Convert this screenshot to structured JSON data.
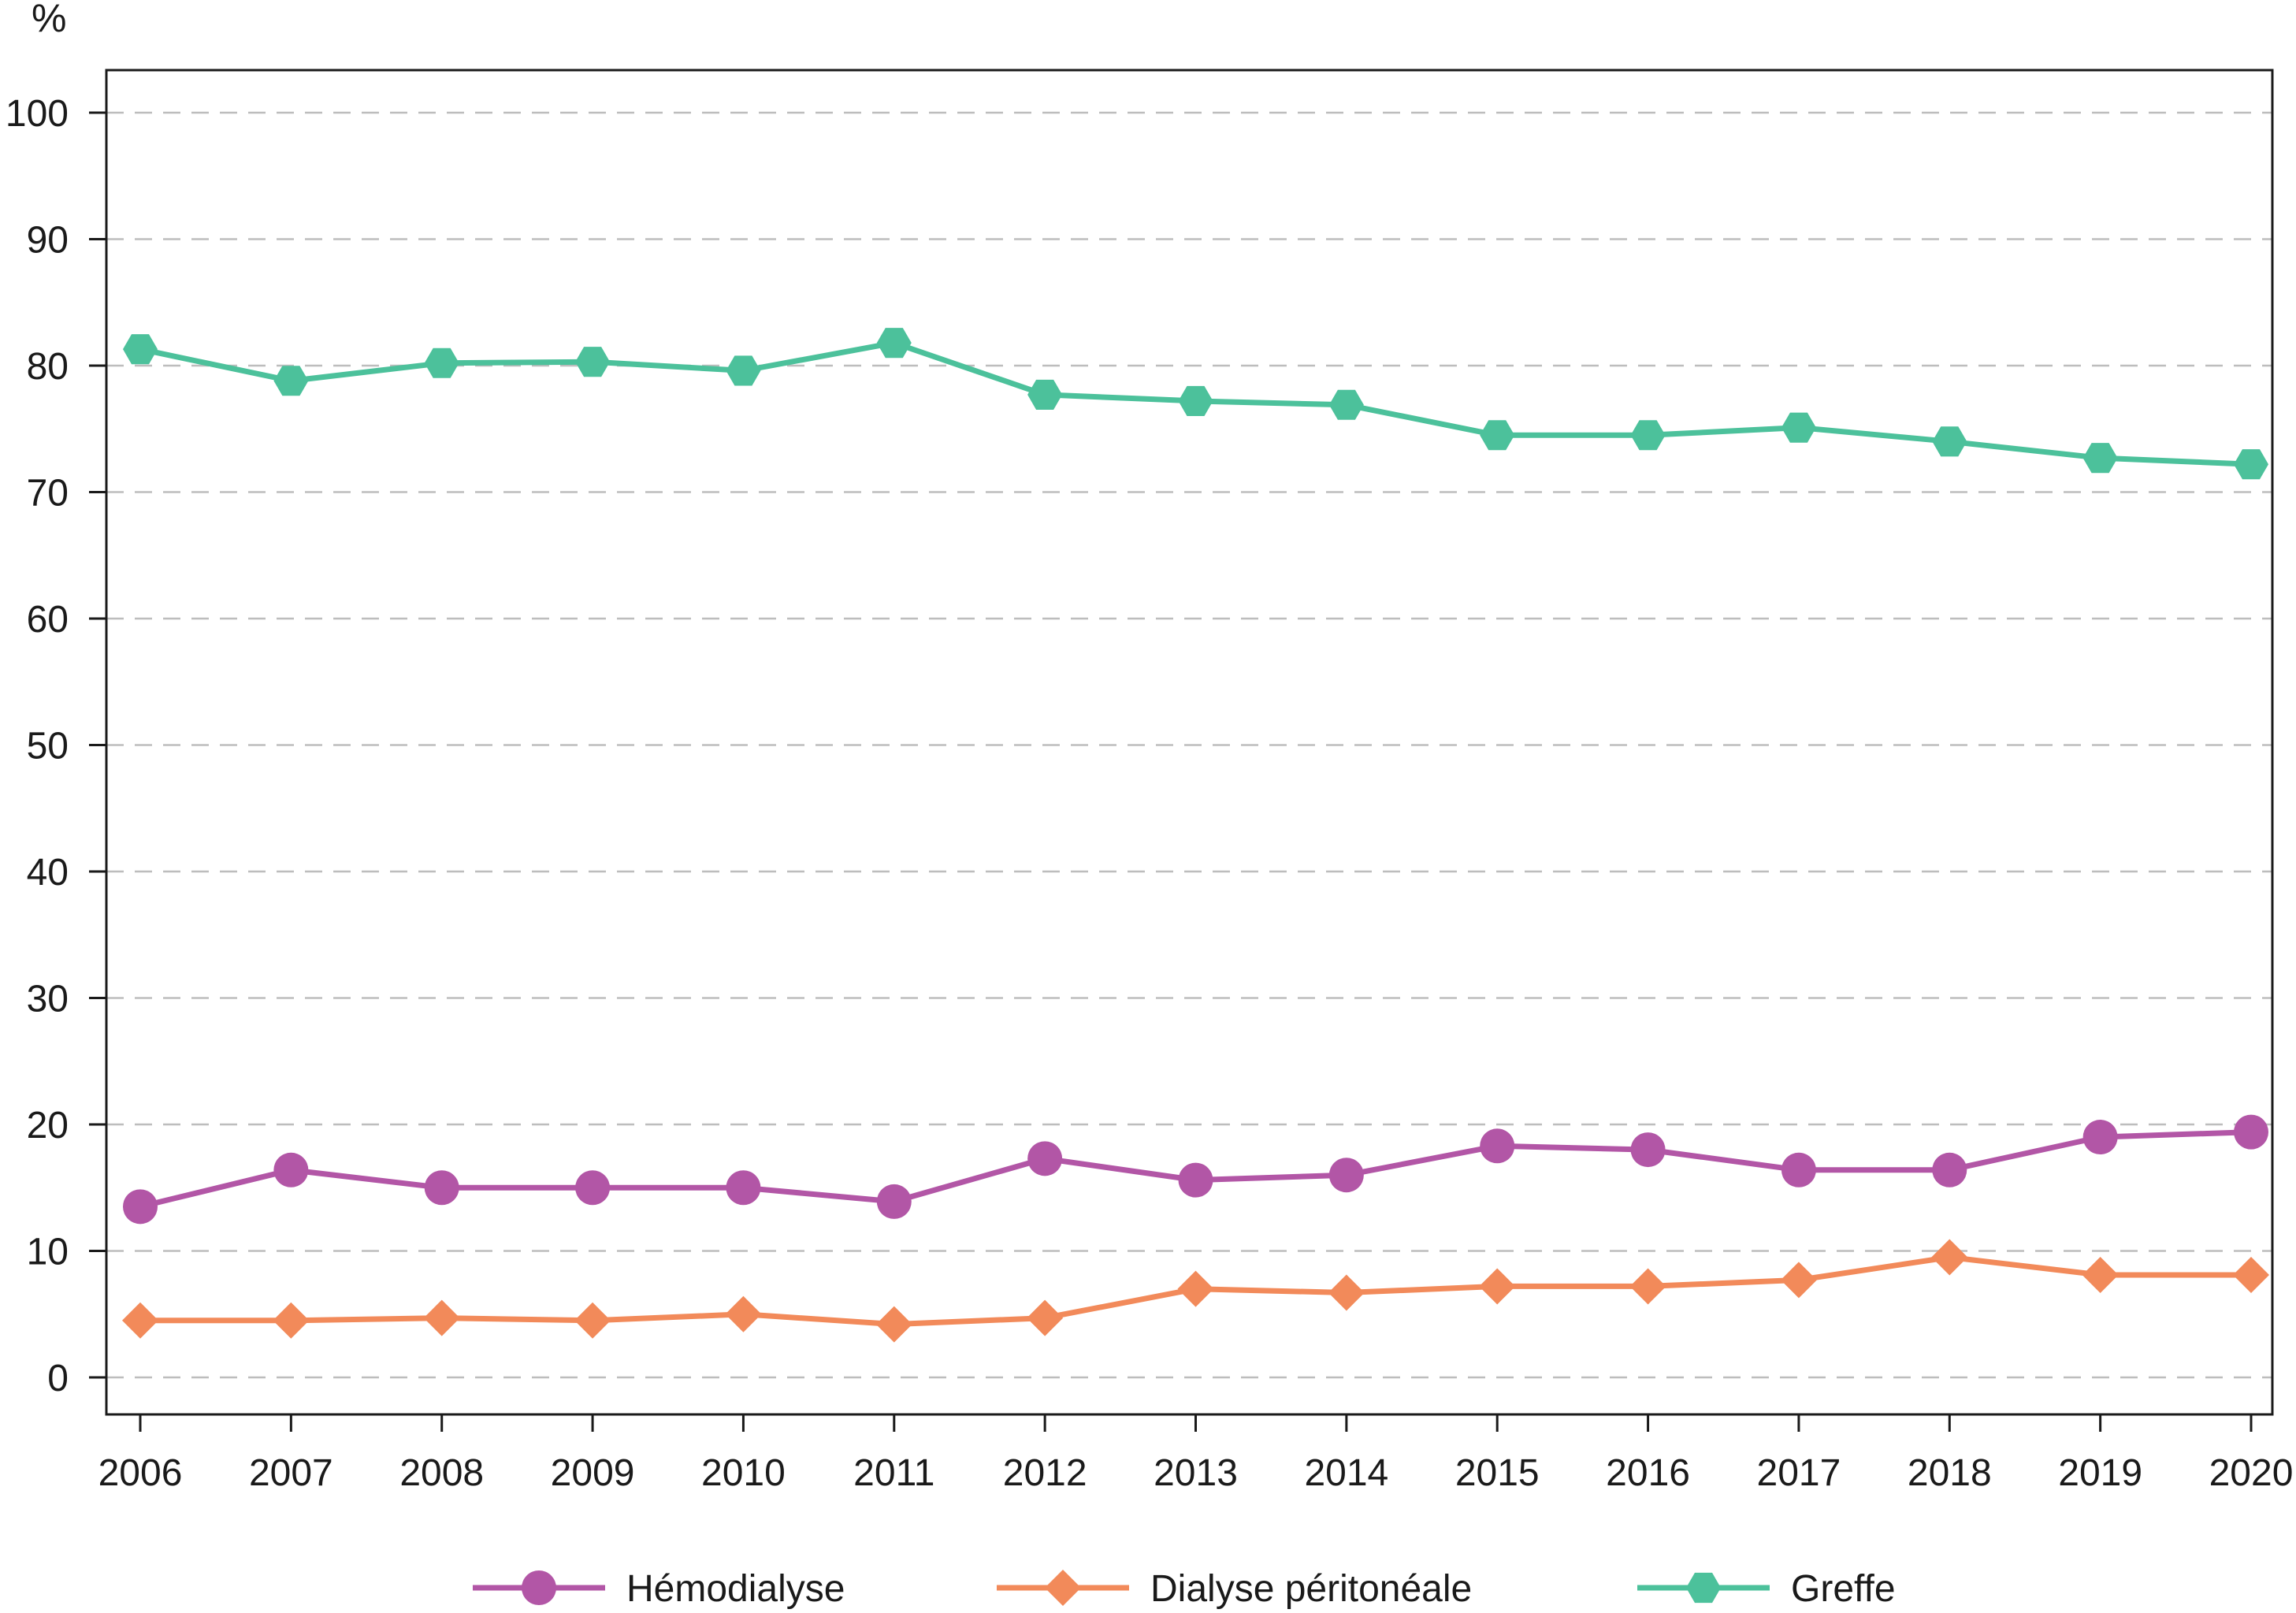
{
  "chart_data": {
    "type": "line",
    "ylabel": "%",
    "x": [
      "2006",
      "2007",
      "2008",
      "2009",
      "2010",
      "2011",
      "2012",
      "2013",
      "2014",
      "2015",
      "2016",
      "2017",
      "2018",
      "2019",
      "2020"
    ],
    "ylim": [
      0,
      100
    ],
    "yticks": [
      "0",
      "10",
      "20",
      "30",
      "40",
      "50",
      "60",
      "70",
      "80",
      "90",
      "100"
    ],
    "grid": true,
    "legend_position": "bottom",
    "series": [
      {
        "name": "Hémodialyse",
        "color": "#b256a6",
        "marker": "circle",
        "values": [
          13.5,
          16.4,
          15.0,
          15.0,
          15.0,
          13.9,
          17.3,
          15.6,
          16.0,
          18.3,
          18.0,
          16.4,
          16.4,
          19.0,
          19.4
        ]
      },
      {
        "name": "Dialyse péritonéale",
        "color": "#f28a5a",
        "marker": "diamond",
        "values": [
          4.5,
          4.5,
          4.7,
          4.5,
          5.0,
          4.2,
          4.7,
          7.0,
          6.7,
          7.2,
          7.2,
          7.7,
          9.5,
          8.1,
          8.1
        ]
      },
      {
        "name": "Greffe",
        "color": "#4cc19b",
        "marker": "hexagon",
        "values": [
          81.3,
          78.8,
          80.2,
          80.3,
          79.6,
          81.8,
          77.7,
          77.2,
          76.9,
          74.5,
          74.5,
          75.1,
          74.0,
          72.7,
          72.2
        ]
      }
    ]
  }
}
